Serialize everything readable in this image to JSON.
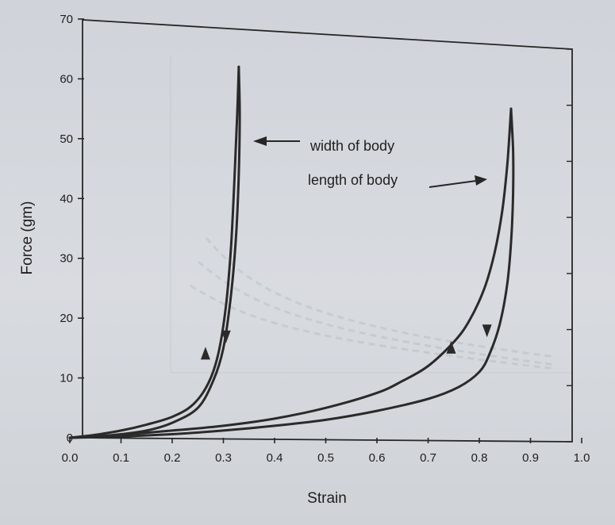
{
  "chart_data": {
    "type": "line",
    "title": "",
    "xlabel": "Strain",
    "ylabel": "Force (gm)",
    "xlim": [
      0.0,
      1.0
    ],
    "ylim": [
      0,
      70
    ],
    "x_ticks": [
      "0.0",
      "0.1",
      "0.2",
      "0.3",
      "0.4",
      "0.5",
      "0.6",
      "0.7",
      "0.8",
      "0.9",
      "1.0"
    ],
    "y_ticks": [
      "0",
      "10",
      "20",
      "30",
      "40",
      "50",
      "60",
      "70"
    ],
    "grid": false,
    "legend": "none",
    "line_color": "#2a2a2a",
    "series": [
      {
        "name": "width of body",
        "loading": {
          "x": [
            0.0,
            0.05,
            0.1,
            0.15,
            0.2,
            0.24,
            0.27,
            0.29,
            0.305,
            0.315,
            0.322,
            0.327,
            0.33
          ],
          "y": [
            0,
            0.5,
            1.2,
            2.2,
            3.5,
            5.5,
            9,
            14,
            22,
            32,
            44,
            54,
            62
          ]
        },
        "unloading": {
          "x": [
            0.33,
            0.332,
            0.33,
            0.325,
            0.315,
            0.3,
            0.28,
            0.25,
            0.2,
            0.15,
            0.1,
            0.05,
            0.0
          ],
          "y": [
            62,
            54,
            44,
            34,
            24,
            15,
            9.5,
            5,
            2.5,
            1.2,
            0.6,
            0.2,
            0
          ]
        },
        "arrows": [
          {
            "direction": "up",
            "x": 0.265,
            "y": 14
          },
          {
            "direction": "down",
            "x": 0.305,
            "y": 17
          }
        ]
      },
      {
        "name": "length of body",
        "loading": {
          "x": [
            0.0,
            0.1,
            0.2,
            0.3,
            0.4,
            0.5,
            0.6,
            0.65,
            0.7,
            0.75,
            0.78,
            0.81,
            0.83,
            0.845,
            0.855,
            0.862
          ],
          "y": [
            0,
            0.5,
            1.2,
            2,
            3.2,
            5,
            7.5,
            9.5,
            12,
            16,
            19.5,
            25,
            31,
            38,
            46,
            55
          ]
        },
        "unloading": {
          "x": [
            0.862,
            0.866,
            0.866,
            0.863,
            0.855,
            0.84,
            0.82,
            0.8,
            0.76,
            0.7,
            0.6,
            0.5,
            0.4,
            0.3,
            0.2,
            0.1,
            0.0
          ],
          "y": [
            55,
            48,
            41,
            34,
            26,
            19,
            14,
            11,
            8.5,
            6.5,
            4.5,
            3,
            2,
            1.2,
            0.6,
            0.2,
            0
          ]
        },
        "arrows": [
          {
            "direction": "up",
            "x": 0.745,
            "y": 15
          },
          {
            "direction": "down",
            "x": 0.815,
            "y": 18
          }
        ]
      }
    ],
    "annotations": [
      {
        "text": "width of body",
        "points_to": {
          "x": 0.335,
          "y": 50
        }
      },
      {
        "text": "length of body",
        "points_to": {
          "x": 0.825,
          "y": 43
        }
      }
    ]
  }
}
